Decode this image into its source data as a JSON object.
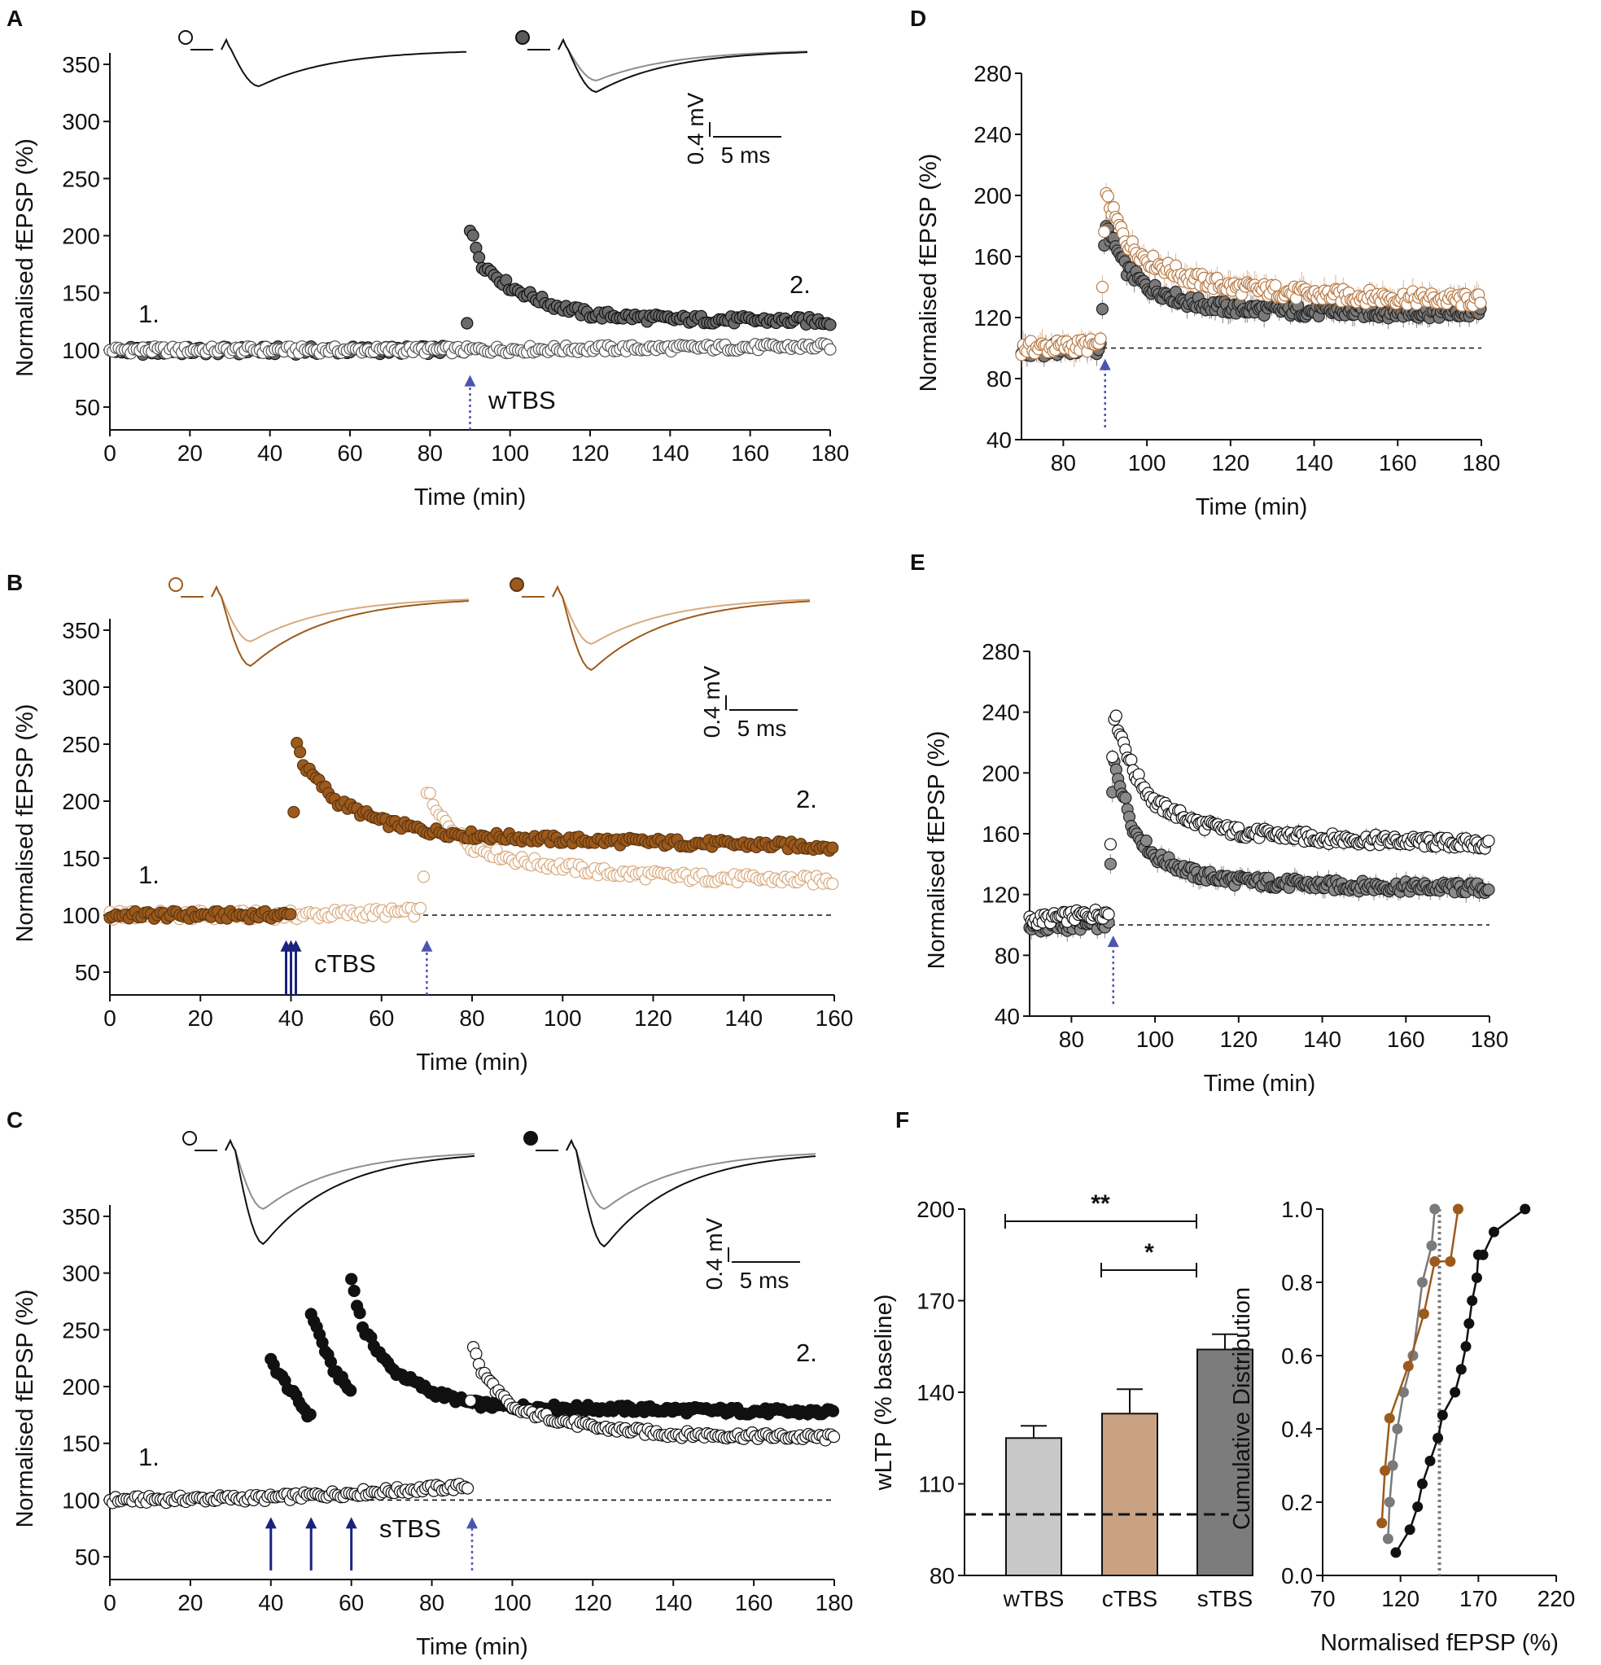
{
  "colors": {
    "black": "#111111",
    "grey": "#7a7a7a",
    "lightgrey": "#bdbdbd",
    "brown": "#9c5a1c",
    "tan": "#d9aa7e",
    "brownDark": "#5c3510",
    "barLight": "#c8c8c8",
    "barTan": "#c9a283",
    "barDark": "#7c7c7c",
    "arrow": "#1a237e",
    "arrowLight": "#4b55b0"
  },
  "chart_data": [
    {
      "panel": "A",
      "type": "scatter",
      "xlabel": "Time (min)",
      "ylabel": "Normalised fEPSP (%)",
      "xlim": [
        0,
        180
      ],
      "ylim": [
        30,
        360
      ],
      "xticks": [
        "0",
        "20",
        "40",
        "60",
        "80",
        "100",
        "120",
        "140",
        "160",
        "180"
      ],
      "yticks": [
        "50",
        "100",
        "150",
        "200",
        "250",
        "300",
        "350"
      ],
      "annotations": {
        "start": "1.",
        "end": "2.",
        "protocol": "wTBS"
      },
      "scale_bar": {
        "amplitude": "0.4 mV",
        "time": "5 ms"
      },
      "series": [
        {
          "name": "open circles (control)",
          "fill": "white",
          "edge": "#555555",
          "points": [
            [
              0,
              100
            ],
            [
              90,
              100
            ],
            [
              180,
              103
            ]
          ]
        },
        {
          "name": "filled circles (wTBS)",
          "fill": "#6b6b6b",
          "edge": "#111111",
          "points": [
            [
              0,
              99
            ],
            [
              89,
              100
            ],
            [
              90,
              205
            ],
            [
              93,
              175
            ],
            [
              100,
              155
            ],
            [
              110,
              140
            ],
            [
              120,
              131
            ],
            [
              140,
              127
            ],
            [
              180,
              125
            ]
          ]
        }
      ],
      "events": [
        {
          "type": "weak",
          "time": 90
        }
      ]
    },
    {
      "panel": "B",
      "type": "scatter",
      "xlabel": "Time (min)",
      "ylabel": "Normalised fEPSP (%)",
      "xlim": [
        0,
        160
      ],
      "ylim": [
        30,
        360
      ],
      "xticks": [
        "0",
        "20",
        "40",
        "60",
        "80",
        "100",
        "120",
        "140",
        "160"
      ],
      "yticks": [
        "50",
        "100",
        "150",
        "200",
        "250",
        "300",
        "350"
      ],
      "annotations": {
        "start": "1.",
        "end": "2.",
        "protocol": "cTBS"
      },
      "scale_bar": {
        "amplitude": "0.4 mV",
        "time": "5 ms"
      },
      "series": [
        {
          "name": "open circles",
          "fill": "white",
          "edge": "#d9aa7e",
          "points": [
            [
              0,
              100
            ],
            [
              40,
              100
            ],
            [
              69,
              103
            ],
            [
              70,
              210
            ],
            [
              72,
              190
            ],
            [
              80,
              160
            ],
            [
              90,
              148
            ],
            [
              110,
              137
            ],
            [
              130,
              133
            ],
            [
              160,
              130
            ]
          ]
        },
        {
          "name": "filled circles",
          "fill": "#9c5a1c",
          "edge": "#5c3510",
          "points": [
            [
              0,
              100
            ],
            [
              40,
              100
            ],
            [
              41,
              255
            ],
            [
              43,
              230
            ],
            [
              50,
              200
            ],
            [
              60,
              182
            ],
            [
              70,
              174
            ],
            [
              80,
              170
            ],
            [
              100,
              166
            ],
            [
              160,
              160
            ]
          ]
        }
      ],
      "events": [
        {
          "type": "strong",
          "time": 40
        },
        {
          "type": "weak",
          "time": 70
        }
      ]
    },
    {
      "panel": "C",
      "type": "scatter",
      "xlabel": "Time (min)",
      "ylabel": "Normalised fEPSP (%)",
      "xlim": [
        0,
        180
      ],
      "ylim": [
        30,
        360
      ],
      "xticks": [
        "0",
        "20",
        "40",
        "60",
        "80",
        "100",
        "120",
        "140",
        "160",
        "180"
      ],
      "yticks": [
        "50",
        "100",
        "150",
        "200",
        "250",
        "300",
        "350"
      ],
      "annotations": {
        "start": "1.",
        "end": "2.",
        "protocol": "sTBS"
      },
      "scale_bar": {
        "amplitude": "0.4 mV",
        "time": "5 ms"
      },
      "series": [
        {
          "name": "open circles",
          "fill": "white",
          "edge": "#111111",
          "points": [
            [
              0,
              100
            ],
            [
              40,
              102
            ],
            [
              89,
              112
            ],
            [
              90,
              240
            ],
            [
              92,
              215
            ],
            [
              100,
              180
            ],
            [
              120,
              164
            ],
            [
              140,
              158
            ],
            [
              180,
              155
            ]
          ]
        },
        {
          "name": "filled circles",
          "fill": "#111111",
          "edge": "#111111",
          "segments": [
            [
              [
                40,
                222
              ],
              [
                45,
                196
              ],
              [
                50,
                172
              ]
            ],
            [
              [
                50,
                265
              ],
              [
                55,
                218
              ],
              [
                60,
                195
              ]
            ],
            [
              [
                60,
                295
              ],
              [
                63,
                250
              ],
              [
                70,
                215
              ],
              [
                80,
                195
              ],
              [
                90,
                185
              ],
              [
                100,
                182
              ],
              [
                180,
                177
              ]
            ]
          ]
        }
      ],
      "events": [
        {
          "type": "strong",
          "time": 40
        },
        {
          "type": "strong",
          "time": 50
        },
        {
          "type": "strong",
          "time": 60
        },
        {
          "type": "weak",
          "time": 90
        }
      ]
    },
    {
      "panel": "D",
      "type": "scatter",
      "xlabel": "Time (min)",
      "ylabel": "Normalised fEPSP (%)",
      "xlim": [
        70,
        180
      ],
      "ylim": [
        40,
        280
      ],
      "xticks": [
        "80",
        "100",
        "120",
        "140",
        "160",
        "180"
      ],
      "yticks": [
        "40",
        "80",
        "120",
        "160",
        "200",
        "240",
        "280"
      ],
      "series": [
        {
          "name": "grey filled (wTBS)",
          "fill": "#7a7a7a",
          "edge": "#222222",
          "points": [
            [
              70,
              98
            ],
            [
              89,
              100
            ],
            [
              90,
              180
            ],
            [
              95,
              152
            ],
            [
              100,
              140
            ],
            [
              110,
              130
            ],
            [
              120,
              126
            ],
            [
              140,
              124
            ],
            [
              180,
              123
            ]
          ]
        },
        {
          "name": "tan open (cTBS)",
          "fill": "white",
          "edge": "#b87a45",
          "points": [
            [
              70,
              100
            ],
            [
              89,
              102
            ],
            [
              90,
              200
            ],
            [
              95,
              170
            ],
            [
              100,
              158
            ],
            [
              110,
              146
            ],
            [
              120,
              140
            ],
            [
              140,
              135
            ],
            [
              180,
              131
            ]
          ]
        }
      ],
      "events": [
        {
          "type": "weak",
          "time": 90
        }
      ]
    },
    {
      "panel": "E",
      "type": "scatter",
      "xlabel": "Time (min)",
      "ylabel": "Normalised fEPSP (%)",
      "xlim": [
        70,
        180
      ],
      "ylim": [
        40,
        280
      ],
      "xticks": [
        "80",
        "100",
        "120",
        "140",
        "160",
        "180"
      ],
      "yticks": [
        "40",
        "80",
        "120",
        "160",
        "200",
        "240",
        "280"
      ],
      "series": [
        {
          "name": "grey filled (wTBS)",
          "fill": "#8a8a8a",
          "edge": "#222222",
          "points": [
            [
              70,
              98
            ],
            [
              89,
              101
            ],
            [
              90,
              208
            ],
            [
              95,
              162
            ],
            [
              100,
              145
            ],
            [
              110,
              133
            ],
            [
              120,
              129
            ],
            [
              140,
              126
            ],
            [
              180,
              124
            ]
          ]
        },
        {
          "name": "white open (sTBS)",
          "fill": "white",
          "edge": "#111111",
          "points": [
            [
              70,
              103
            ],
            [
              89,
              108
            ],
            [
              90,
              240
            ],
            [
              95,
              200
            ],
            [
              100,
              180
            ],
            [
              110,
              167
            ],
            [
              120,
              161
            ],
            [
              140,
              157
            ],
            [
              180,
              153
            ]
          ]
        }
      ],
      "events": [
        {
          "type": "weak",
          "time": 90
        }
      ]
    },
    {
      "panel": "F",
      "type": "bar",
      "ylabel": "wLTP (% baseline)",
      "ylim": [
        80,
        200
      ],
      "yticks": [
        "80",
        "110",
        "140",
        "170",
        "200"
      ],
      "categories": [
        "wTBS",
        "cTBS",
        "sTBS"
      ],
      "values": [
        125,
        133,
        154
      ],
      "errors": [
        4,
        8,
        5
      ],
      "baseline": 100,
      "significance": [
        {
          "from": "wTBS",
          "to": "sTBS",
          "label": "**"
        },
        {
          "from": "cTBS",
          "to": "sTBS",
          "label": "*"
        }
      ]
    },
    {
      "panel": "F",
      "type": "line",
      "xlabel": "Normalised fEPSP (%)",
      "ylabel": "Cumulative Distribution",
      "xlim": [
        70,
        220
      ],
      "ylim": [
        0,
        1
      ],
      "xticks": [
        "70",
        "120",
        "170",
        "220"
      ],
      "yticks": [
        "0.0",
        "0.2",
        "0.4",
        "0.6",
        "0.8",
        "1.0"
      ],
      "reference_x": 145,
      "series": [
        {
          "name": "wTBS",
          "color": "#7a7a7a",
          "x": [
            112,
            113,
            115,
            118,
            122,
            128,
            134,
            140,
            142
          ],
          "y": [
            0.1,
            0.2,
            0.3,
            0.4,
            0.5,
            0.6,
            0.8,
            0.9,
            1.0
          ]
        },
        {
          "name": "cTBS",
          "color": "#9c5a1c",
          "x": [
            108,
            110,
            113,
            125,
            135,
            142,
            152,
            157
          ],
          "y": [
            0.143,
            0.286,
            0.429,
            0.571,
            0.714,
            0.857,
            0.857,
            1.0
          ]
        },
        {
          "name": "sTBS",
          "color": "#111111",
          "x": [
            117,
            126,
            131,
            134,
            139,
            144,
            147,
            155,
            159,
            162,
            164,
            166,
            169,
            170,
            173,
            180,
            200
          ],
          "y": [
            0.0625,
            0.125,
            0.1875,
            0.25,
            0.3125,
            0.375,
            0.4375,
            0.5,
            0.5625,
            0.625,
            0.6875,
            0.75,
            0.8125,
            0.875,
            0.875,
            0.9375,
            1.0
          ]
        }
      ]
    }
  ]
}
